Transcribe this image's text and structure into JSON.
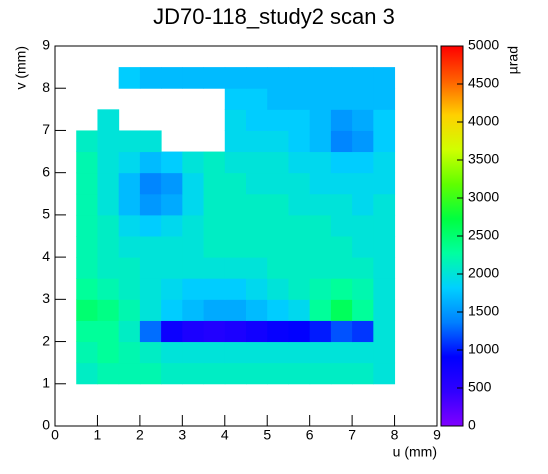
{
  "chart_data": {
    "type": "heatmap",
    "title": "JD70-118_study2 scan 3",
    "x_label": "u (mm)",
    "y_label": "v (mm)",
    "z_label": "µrad",
    "xlim": [
      0,
      9
    ],
    "ylim": [
      0,
      9
    ],
    "zlim": [
      0,
      5000
    ],
    "xticks": [
      0,
      1,
      2,
      3,
      4,
      5,
      6,
      7,
      8,
      9
    ],
    "yticks": [
      0,
      1,
      2,
      3,
      4,
      5,
      6,
      7,
      8,
      9
    ],
    "zticks": [
      0,
      500,
      1000,
      1500,
      2000,
      2500,
      3000,
      3500,
      4000,
      4500,
      5000
    ],
    "colorscale": [
      "#8000ff",
      "#3000ff",
      "#0000ff",
      "#0080ff",
      "#00d0ff",
      "#00ffa0",
      "#00ff40",
      "#60ff00",
      "#d0ff00",
      "#ffd000",
      "#ff6000",
      "#ff0000"
    ],
    "x": [
      0.5,
      1,
      1.5,
      2,
      2.5,
      3,
      3.5,
      4,
      4.5,
      5,
      5.5,
      6,
      6.5,
      7,
      7.5,
      8
    ],
    "y": [
      1,
      1.5,
      2,
      2.5,
      3,
      3.5,
      4,
      4.5,
      5,
      5.5,
      6,
      6.5,
      7,
      7.5,
      8,
      8.5
    ],
    "z": [
      [
        2100,
        2200,
        2200,
        2200,
        2100,
        2100,
        2100,
        2100,
        2100,
        2100,
        2100,
        2100,
        2100,
        2100,
        2000
      ],
      [
        2200,
        2300,
        2200,
        2100,
        2000,
        2000,
        2000,
        2000,
        2000,
        2000,
        2000,
        2000,
        2000,
        2000,
        2000
      ],
      [
        2300,
        2300,
        2100,
        1300,
        800,
        650,
        600,
        650,
        750,
        850,
        900,
        1000,
        1200,
        1100,
        2000
      ],
      [
        2500,
        2400,
        2200,
        2000,
        1800,
        1700,
        1600,
        1600,
        1700,
        1800,
        1900,
        2300,
        2600,
        2300,
        2000
      ],
      [
        2300,
        2200,
        2100,
        2000,
        1900,
        1800,
        1800,
        1800,
        1900,
        2000,
        2100,
        2200,
        2300,
        2200,
        2000
      ],
      [
        2200,
        2100,
        2100,
        2000,
        2000,
        2000,
        2000,
        2000,
        2000,
        2100,
        2100,
        2100,
        2100,
        2100,
        2000
      ],
      [
        2200,
        2100,
        2000,
        2000,
        2000,
        2000,
        2100,
        2100,
        2100,
        2100,
        2100,
        2100,
        2100,
        2000,
        2000
      ],
      [
        2200,
        2100,
        1900,
        1800,
        1900,
        2000,
        2100,
        2100,
        2100,
        2100,
        2100,
        2100,
        2000,
        2000,
        2000
      ],
      [
        2200,
        2000,
        1700,
        1500,
        1600,
        1900,
        2100,
        2100,
        2100,
        2100,
        2000,
        2000,
        2000,
        1900,
        2000
      ],
      [
        2200,
        2000,
        1700,
        1400,
        1500,
        1900,
        2100,
        2100,
        2000,
        2000,
        2000,
        1900,
        1900,
        1900,
        1900
      ],
      [
        2200,
        2000,
        1900,
        1700,
        1800,
        2000,
        2100,
        2000,
        2000,
        2000,
        1900,
        1900,
        1800,
        1800,
        1900
      ],
      [
        2100,
        2000,
        2000,
        2000,
        null,
        null,
        null,
        1900,
        1900,
        1900,
        1800,
        1700,
        1400,
        1500,
        1800
      ],
      [
        null,
        2000,
        null,
        null,
        null,
        null,
        null,
        1900,
        1800,
        1800,
        1800,
        1700,
        1500,
        1600,
        1800
      ],
      [
        null,
        null,
        null,
        null,
        null,
        null,
        null,
        1800,
        1800,
        1700,
        1700,
        1700,
        1700,
        1700,
        1700
      ],
      [
        null,
        null,
        1800,
        1700,
        1700,
        1700,
        1700,
        1700,
        1700,
        1700,
        1700,
        1700,
        1700,
        1700,
        1700
      ]
    ]
  }
}
